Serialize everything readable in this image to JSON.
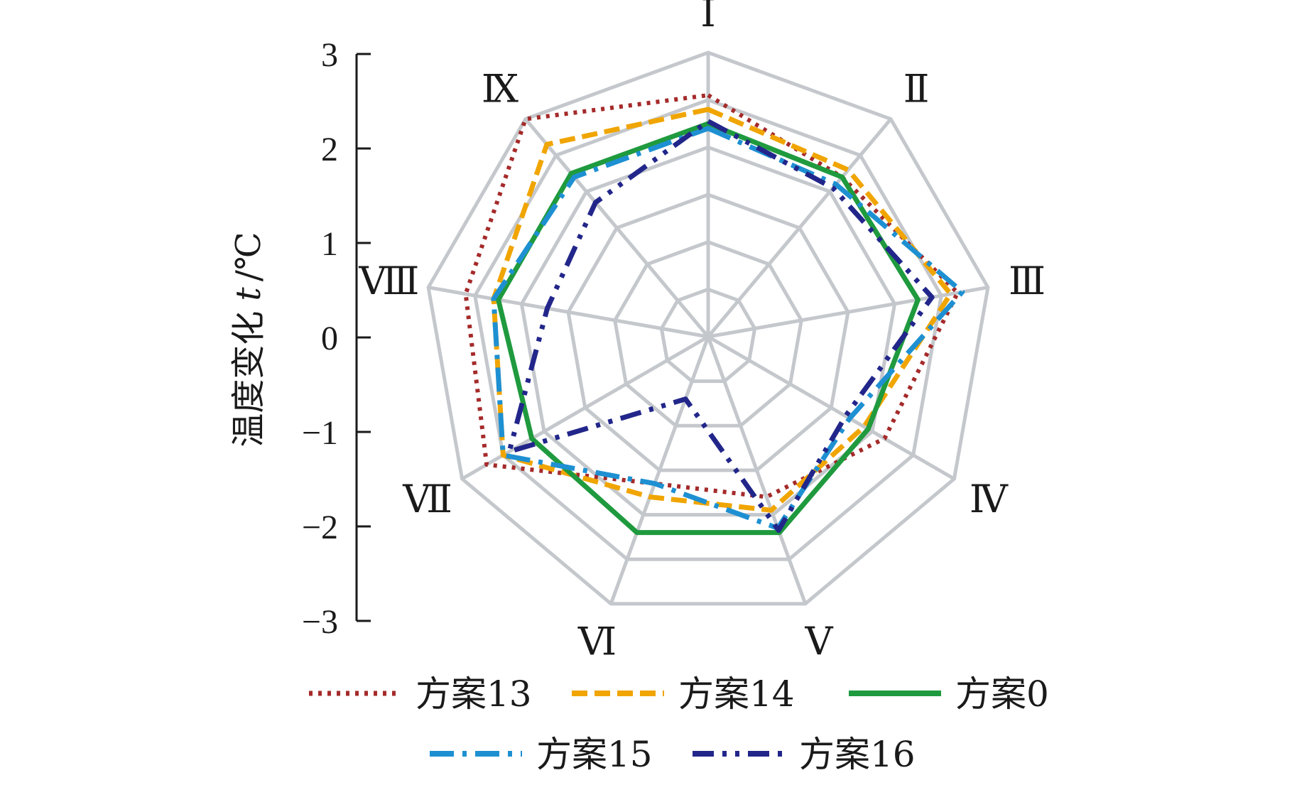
{
  "chart_data": {
    "type": "radar",
    "ylabel_text": "温度变化",
    "ylabel_var": "t",
    "ylabel_unit": "/℃",
    "ylim": [
      -3,
      3
    ],
    "yticks": [
      3,
      2,
      1,
      0,
      -1,
      -2,
      -3
    ],
    "ytick_labels": [
      "3",
      "2",
      "1",
      "0",
      "−1",
      "−2",
      "−3"
    ],
    "categories": [
      "Ⅰ",
      "Ⅱ",
      "Ⅲ",
      "Ⅳ",
      "Ⅴ",
      "Ⅵ",
      "Ⅶ",
      "Ⅷ",
      "Ⅸ"
    ],
    "legend_position": "bottom",
    "series": [
      {
        "name": "方案13",
        "color": "#a52a2a",
        "style": "dotted",
        "values": [
          2.1,
          1.4,
          2.35,
          1.3,
          0.6,
          0.3,
          2.4,
          2.2,
          3.0
        ]
      },
      {
        "name": "方案14",
        "color": "#f0a500",
        "style": "dashed",
        "values": [
          1.8,
          1.6,
          2.2,
          0.8,
          0.9,
          0.6,
          2.0,
          1.6,
          2.3
        ]
      },
      {
        "name": "方案0",
        "color": "#1f9a3e",
        "style": "solid",
        "values": [
          1.5,
          1.4,
          1.5,
          0.9,
          1.4,
          1.4,
          1.3,
          1.5,
          1.5
        ]
      },
      {
        "name": "方案15",
        "color": "#1e90d2",
        "style": "dashdot",
        "values": [
          1.4,
          1.2,
          2.45,
          0.45,
          1.3,
          0.3,
          2.0,
          1.6,
          1.4
        ]
      },
      {
        "name": "方案16",
        "color": "#22268a",
        "style": "dashdotdot",
        "values": [
          1.55,
          1.1,
          1.8,
          0.35,
          1.35,
          -1.6,
          1.85,
          0.45,
          0.7
        ]
      }
    ]
  }
}
